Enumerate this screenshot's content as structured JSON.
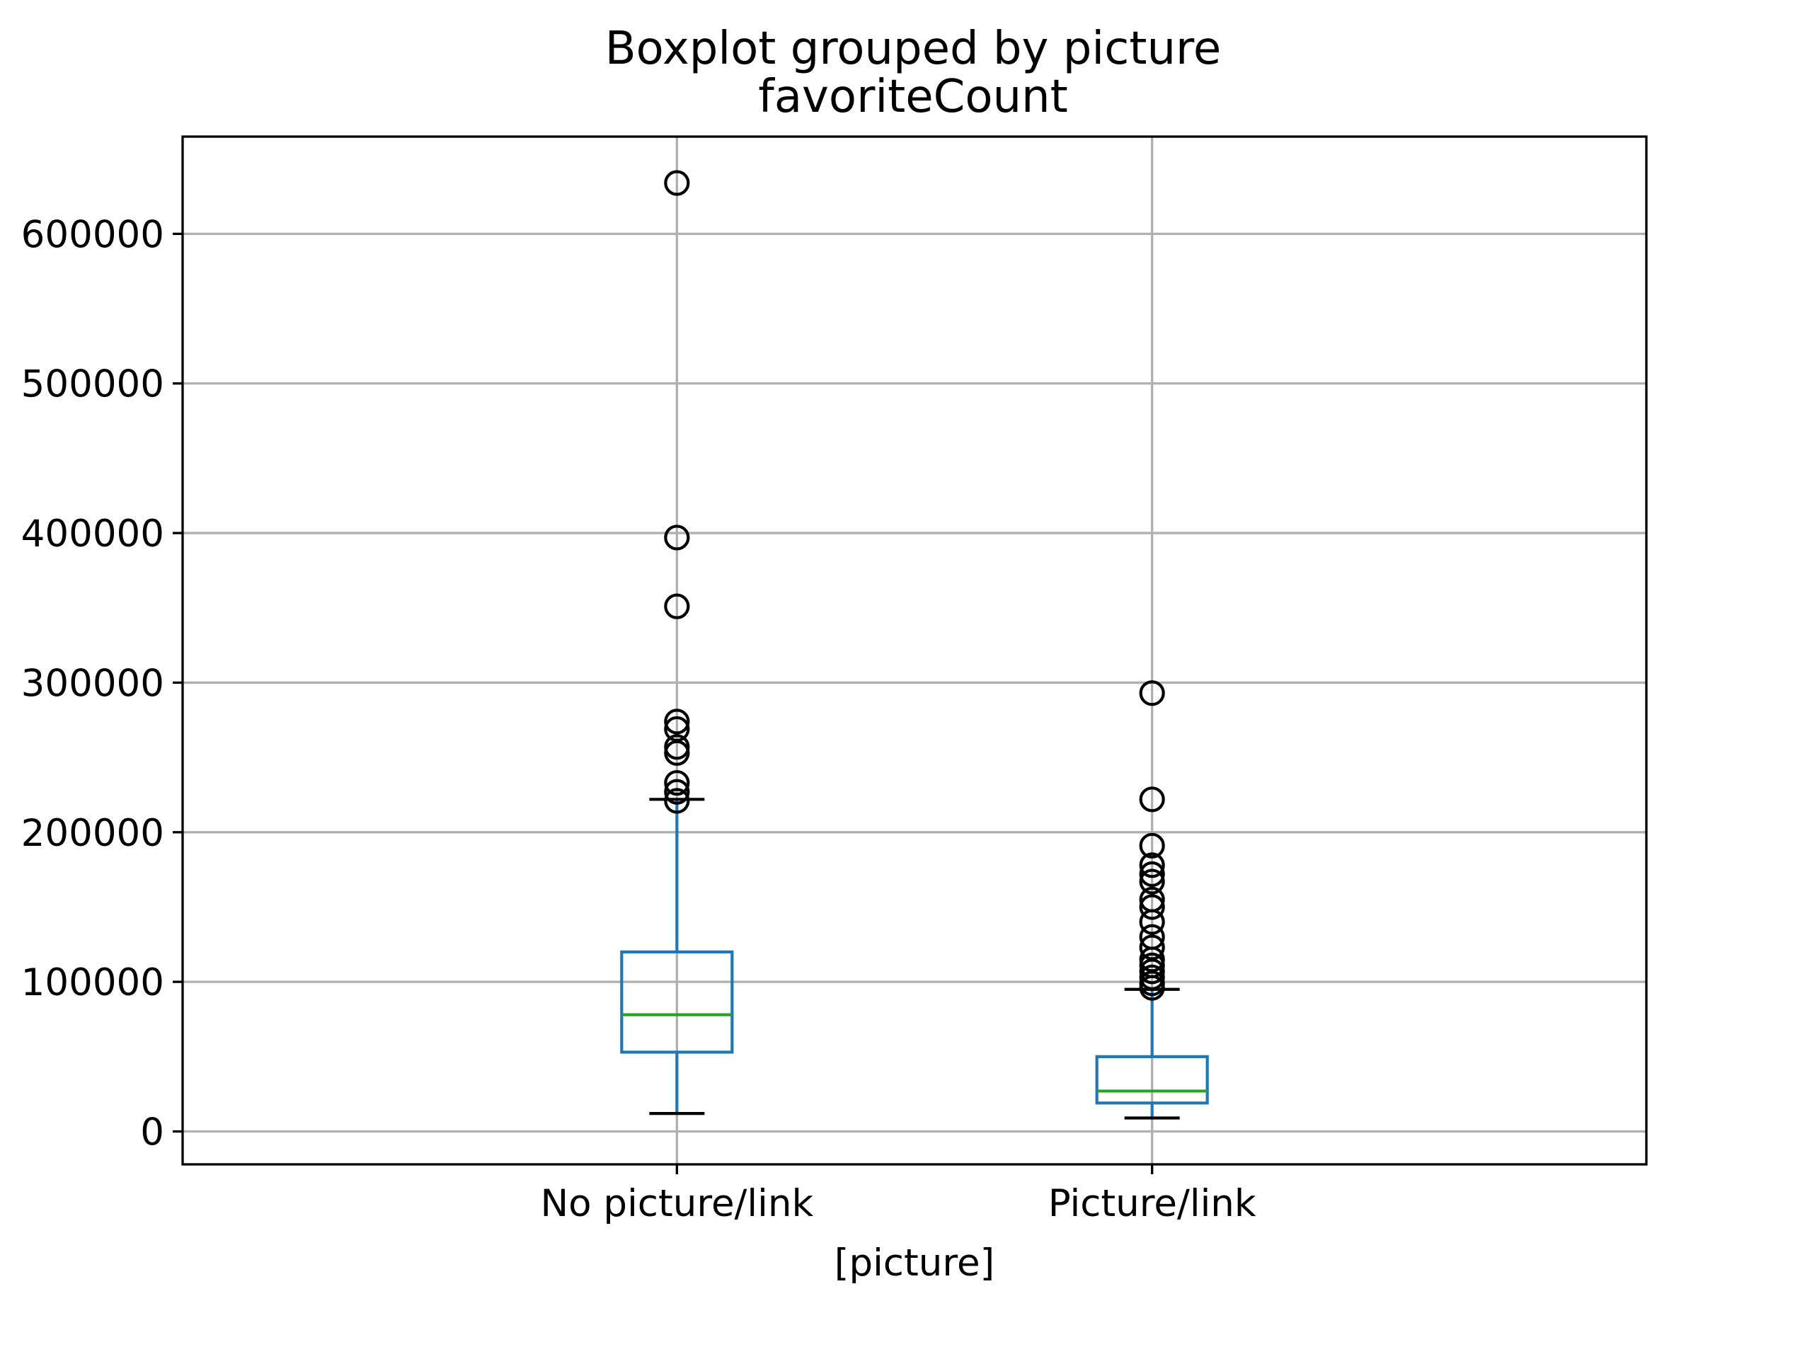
{
  "chart_data": {
    "type": "box",
    "title": "Boxplot grouped by picture",
    "subtitle": "favoriteCount",
    "xlabel": "[picture]",
    "ylabel": "",
    "ylim": [
      -22000,
      665000
    ],
    "yticks": [
      0,
      100000,
      200000,
      300000,
      400000,
      500000,
      600000
    ],
    "ytick_labels": [
      "0",
      "100000",
      "200000",
      "300000",
      "400000",
      "500000",
      "600000"
    ],
    "grid": true,
    "colors": {
      "box": "#1f77b4",
      "median": "#2ca02c",
      "whisker_cap": "#000000",
      "flier": "#000000",
      "grid": "#b0b0b0"
    },
    "categories": [
      "No picture/link",
      "Picture/link"
    ],
    "boxes": [
      {
        "category": "No picture/link",
        "whisker_low": 12000,
        "q1": 53000,
        "median": 78000,
        "q3": 120000,
        "whisker_high": 222000,
        "outliers": [
          634000,
          397000,
          351000,
          274000,
          269000,
          257000,
          253000,
          233000,
          227000,
          221000
        ]
      },
      {
        "category": "Picture/link",
        "whisker_low": 9000,
        "q1": 19000,
        "median": 27000,
        "q3": 50000,
        "whisker_high": 95000,
        "outliers": [
          293000,
          222000,
          191000,
          178000,
          172000,
          167000,
          155000,
          150000,
          140000,
          130000,
          123000,
          115000,
          111000,
          107000,
          103000,
          99000,
          96000
        ]
      }
    ]
  }
}
